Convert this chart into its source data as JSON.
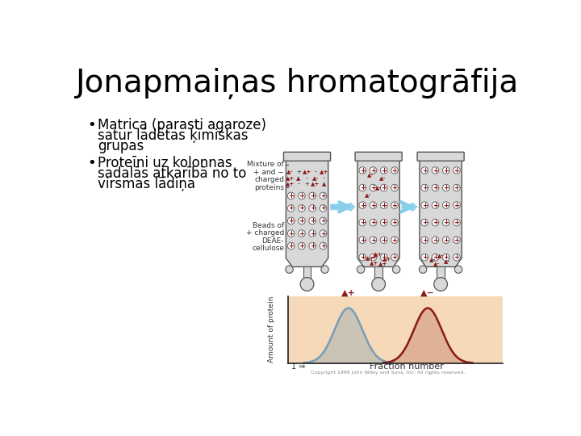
{
  "title": "Jonapmaiņas hromatogrāfija",
  "bullet1_line1": "Matrica (parasti agaroze)",
  "bullet1_line2": "satur lādētas ķīmiskas",
  "bullet1_line3": "grupas",
  "bullet2_line1": "Proteīni uz kolonnas",
  "bullet2_line2": "sadalās atkarībā no to",
  "bullet2_line3": "virsmas lādiņa",
  "bg_color": "#ffffff",
  "title_fontsize": 28,
  "text_fontsize": 12,
  "title_color": "#000000",
  "text_color": "#000000",
  "diagram_bg": "#f5d9b8",
  "peak1_color": "#7a9db5",
  "peak2_color": "#8b1a1a",
  "column_bg": "#d8d8d8",
  "bead_color": "#ffffff",
  "bead_edge": "#555555",
  "plus_color": "#8b1a1a",
  "minus_color": "#555555",
  "arrow_color": "#87ceeb",
  "copyright": "Copyright 1999 John Wiley and Sons, Inc. All rights reserved."
}
